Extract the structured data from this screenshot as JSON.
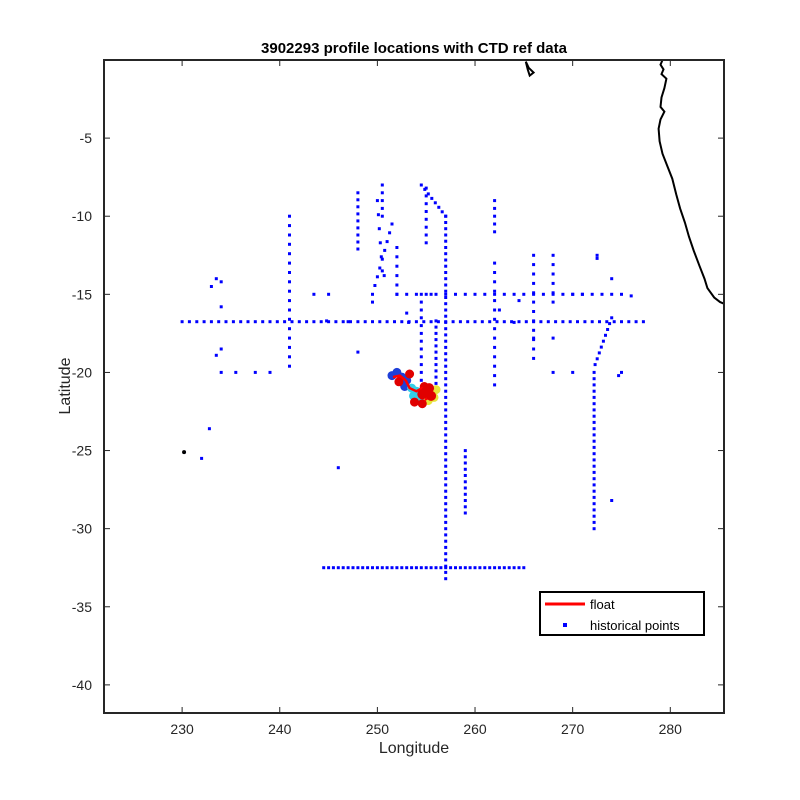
{
  "chart_data": {
    "type": "scatter",
    "title": "3902293 profile locations with CTD ref data",
    "xlabel": "Longitude",
    "ylabel": "Latitude",
    "xlim": [
      222,
      285.5
    ],
    "ylim": [
      -41.8,
      0
    ],
    "x_ticks": [
      230,
      240,
      250,
      260,
      270,
      280
    ],
    "y_ticks": [
      -5,
      -10,
      -15,
      -20,
      -25,
      -30,
      -35,
      -40
    ],
    "grid": false,
    "legend": {
      "position": "lower-right",
      "entries": [
        {
          "label": "float",
          "color": "#ff0000",
          "marker": "line"
        },
        {
          "label": "historical points",
          "color": "#0000ff",
          "marker": "dot"
        }
      ]
    },
    "colors": {
      "historical": "#0000ff",
      "float_track": "#ff0000",
      "coastline": "#000000",
      "float_profiles_start": "#1e3fd8",
      "float_profiles_mid": "#33cfe8",
      "float_profiles_late": "#e8e43a",
      "float_profiles_end": "#e00000"
    },
    "historical_points": {
      "rows": [
        {
          "y": -16.75,
          "x_from": 230,
          "x_to": 277.5,
          "step": 0.75
        },
        {
          "y": -32.5,
          "x_from": 244.5,
          "x_to": 265,
          "step": 0.5
        },
        {
          "y": -15,
          "x_from": 252,
          "x_to": 275.5,
          "step": 1.0
        }
      ],
      "columns": [
        {
          "x": 257,
          "y_from": -10,
          "y_to": -33.5,
          "step": 0.4
        },
        {
          "x": 272.2,
          "y_from": -20,
          "y_to": -30,
          "step": 0.4
        },
        {
          "x": 241,
          "y_from": -10,
          "y_to": -20,
          "step": 0.6
        },
        {
          "x": 248,
          "y_from": -8.5,
          "y_to": -12.5,
          "step": 0.45
        },
        {
          "x": 254.5,
          "y_from": -15,
          "y_to": -22,
          "step": 0.5
        },
        {
          "x": 255,
          "y_from": -8.2,
          "y_to": -12,
          "step": 0.5
        },
        {
          "x": 259,
          "y_from": -25,
          "y_to": -29,
          "step": 0.4
        },
        {
          "x": 262,
          "y_from": -9,
          "y_to": -11,
          "step": 0.5
        },
        {
          "x": 262,
          "y_from": -13,
          "y_to": -21,
          "step": 0.6
        },
        {
          "x": 266,
          "y_from": -12.5,
          "y_to": -19.5,
          "step": 0.6
        },
        {
          "x": 256,
          "y_from": -16.7,
          "y_to": -21,
          "step": 0.4
        },
        {
          "x": 252,
          "y_from": -12,
          "y_to": -15,
          "step": 0.6
        },
        {
          "x": 268,
          "y_from": -12.5,
          "y_to": -15.5,
          "step": 0.6
        },
        {
          "x": 250.5,
          "y_from": -8,
          "y_to": -10,
          "step": 0.5
        }
      ],
      "diagonals": [
        {
          "x1": 254.5,
          "y1": -8,
          "x2": 257,
          "y2": -10,
          "n": 8
        },
        {
          "x1": 251.5,
          "y1": -10.5,
          "x2": 249.5,
          "y2": -15,
          "n": 9
        },
        {
          "x1": 274,
          "y1": -16.5,
          "x2": 272.3,
          "y2": -19.5,
          "n": 9
        },
        {
          "x1": 250,
          "y1": -9,
          "x2": 250.5,
          "y2": -13.5,
          "n": 6
        }
      ],
      "scattered": [
        [
          230.2,
          -25.1
        ],
        [
          232,
          -25.5
        ],
        [
          232.8,
          -23.6
        ],
        [
          233,
          -14.5
        ],
        [
          233.5,
          -14.0
        ],
        [
          234,
          -15.8
        ],
        [
          234,
          -14.2
        ],
        [
          233.5,
          -18.9
        ],
        [
          234,
          -20
        ],
        [
          234,
          -18.5
        ],
        [
          235.5,
          -20
        ],
        [
          237.5,
          -20
        ],
        [
          239,
          -20
        ],
        [
          245,
          -15
        ],
        [
          243.5,
          -15
        ],
        [
          246,
          -26.1
        ],
        [
          248,
          -18.7
        ],
        [
          255.5,
          -15
        ],
        [
          270,
          -15
        ],
        [
          271,
          -15
        ],
        [
          272.5,
          -12.5
        ],
        [
          272.5,
          -12.7
        ],
        [
          274,
          -14
        ],
        [
          274,
          -28.2
        ],
        [
          274.7,
          -20.2
        ],
        [
          275,
          -20
        ],
        [
          276,
          -15.1
        ],
        [
          264,
          -16.8
        ],
        [
          268,
          -20
        ],
        [
          270,
          -20
        ],
        [
          268,
          -17.8
        ],
        [
          266,
          -17.8
        ],
        [
          250.7,
          -13.8
        ],
        [
          249.5,
          -15.5
        ],
        [
          244.8,
          -16.7
        ],
        [
          247,
          -16.75
        ],
        [
          253,
          -16.2
        ],
        [
          253.2,
          -16.8
        ],
        [
          262.5,
          -16
        ],
        [
          264.5,
          -15.4
        ]
      ]
    },
    "float_cluster": {
      "points": [
        [
          251.5,
          -20.2
        ],
        [
          252,
          -20
        ],
        [
          252.5,
          -20.3
        ],
        [
          253,
          -20.5
        ],
        [
          252.8,
          -20.9
        ],
        [
          253.5,
          -21.0
        ],
        [
          254,
          -21.2
        ],
        [
          254.5,
          -21.5
        ],
        [
          254.2,
          -21.8
        ],
        [
          253.7,
          -21.5
        ],
        [
          255,
          -21.0
        ],
        [
          255.5,
          -21.3
        ],
        [
          255.2,
          -21.8
        ],
        [
          255.8,
          -21.6
        ],
        [
          256,
          -21.1
        ],
        [
          254.8,
          -20.9
        ],
        [
          253.3,
          -20.1
        ],
        [
          252.2,
          -20.6
        ],
        [
          253.8,
          -21.9
        ],
        [
          254.6,
          -22.0
        ]
      ],
      "track": [
        [
          251.6,
          -20.3
        ],
        [
          252.3,
          -20.2
        ],
        [
          252.9,
          -20.5
        ],
        [
          253.3,
          -21.0
        ],
        [
          254.0,
          -21.2
        ],
        [
          254.6,
          -21.0
        ],
        [
          255.2,
          -21.2
        ],
        [
          255.6,
          -21.5
        ],
        [
          255.0,
          -21.7
        ],
        [
          255.4,
          -21.1
        ]
      ]
    },
    "coastline": [
      [
        279.2,
        0
      ],
      [
        279.0,
        -0.3
      ],
      [
        279.3,
        -0.6
      ],
      [
        279.1,
        -0.9
      ],
      [
        279.6,
        -1.2
      ],
      [
        279.4,
        -1.8
      ],
      [
        279.1,
        -2.4
      ],
      [
        279.0,
        -3.0
      ],
      [
        279.4,
        -3.3
      ],
      [
        279.0,
        -3.8
      ],
      [
        278.8,
        -4.4
      ],
      [
        278.9,
        -5.2
      ],
      [
        279.2,
        -6.0
      ],
      [
        279.7,
        -6.8
      ],
      [
        280.2,
        -7.6
      ],
      [
        280.6,
        -8.6
      ],
      [
        281.0,
        -9.5
      ],
      [
        281.5,
        -10.4
      ],
      [
        281.9,
        -11.3
      ],
      [
        282.4,
        -12.2
      ],
      [
        283.0,
        -13.2
      ],
      [
        283.5,
        -14.0
      ],
      [
        283.8,
        -14.6
      ],
      [
        284.5,
        -15.2
      ],
      [
        285.1,
        -15.5
      ],
      [
        285.5,
        -15.6
      ]
    ],
    "coastline_islands": [
      [
        [
          265.2,
          -0.1
        ],
        [
          265.5,
          -0.5
        ],
        [
          266.0,
          -0.8
        ],
        [
          265.6,
          -1.0
        ],
        [
          265.4,
          -0.6
        ],
        [
          265.2,
          -0.1
        ]
      ]
    ]
  }
}
